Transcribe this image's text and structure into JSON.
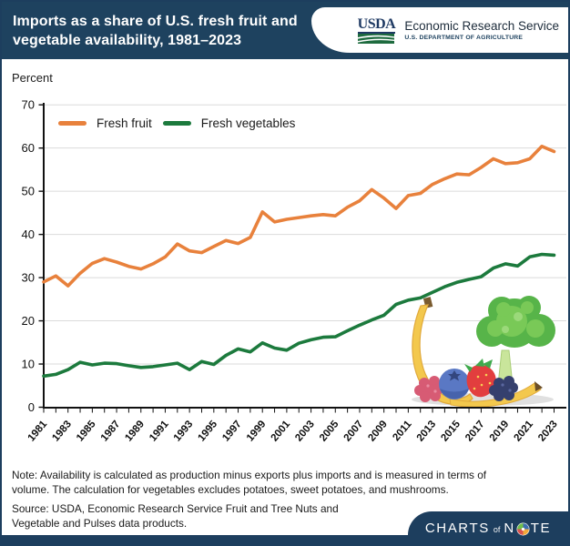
{
  "header": {
    "title_lines": [
      "Imports as a share of U.S. fresh fruit and",
      "vegetable availability, 1981–2023"
    ],
    "usda": {
      "wordmark": "USDA",
      "agency": "Economic Research Service",
      "dept": "U.S. DEPARTMENT OF AGRICULTURE"
    }
  },
  "chart": {
    "percent_label": "Percent"
  },
  "chart_data": {
    "type": "line",
    "title": "Imports as a share of U.S. fresh fruit and vegetable availability, 1981–2023",
    "xlabel": "",
    "ylabel": "Percent",
    "ylim": [
      0,
      70
    ],
    "yticks": [
      0,
      10,
      20,
      30,
      40,
      50,
      60,
      70
    ],
    "grid": "horizontal",
    "legend_position": "top-left-inside",
    "x": [
      1981,
      1982,
      1983,
      1984,
      1985,
      1986,
      1987,
      1988,
      1989,
      1990,
      1991,
      1992,
      1993,
      1994,
      1995,
      1996,
      1997,
      1998,
      1999,
      2000,
      2001,
      2002,
      2003,
      2004,
      2005,
      2006,
      2007,
      2008,
      2009,
      2010,
      2011,
      2012,
      2013,
      2014,
      2015,
      2016,
      2017,
      2018,
      2019,
      2020,
      2021,
      2022,
      2023
    ],
    "xtick_labels": [
      1981,
      1983,
      1985,
      1987,
      1989,
      1991,
      1993,
      1995,
      1997,
      1999,
      2001,
      2003,
      2005,
      2007,
      2009,
      2011,
      2013,
      2015,
      2017,
      2019,
      2021,
      2023
    ],
    "series": [
      {
        "name": "Fresh fruit",
        "color": "#E8813C",
        "values": [
          29.0,
          30.4,
          28.1,
          31.0,
          33.3,
          34.4,
          33.6,
          32.6,
          32.0,
          33.2,
          34.8,
          37.8,
          36.2,
          35.8,
          37.2,
          38.6,
          37.9,
          39.3,
          45.2,
          42.9,
          43.5,
          43.9,
          44.3,
          44.6,
          44.3,
          46.3,
          47.8,
          50.4,
          48.4,
          46.0,
          49.0,
          49.5,
          51.6,
          52.9,
          54.0,
          53.8,
          55.5,
          57.5,
          56.4,
          56.6,
          57.5,
          60.4,
          59.2
        ]
      },
      {
        "name": "Fresh vegetables",
        "color": "#1C7A3D",
        "values": [
          7.2,
          7.6,
          8.7,
          10.4,
          9.8,
          10.2,
          10.1,
          9.6,
          9.2,
          9.4,
          9.8,
          10.2,
          8.7,
          10.6,
          9.9,
          12.0,
          13.5,
          12.8,
          14.9,
          13.7,
          13.2,
          14.8,
          15.6,
          16.2,
          16.3,
          17.7,
          19.0,
          20.2,
          21.3,
          23.8,
          24.8,
          25.3,
          26.6,
          27.9,
          28.9,
          29.6,
          30.2,
          32.2,
          33.2,
          32.7,
          34.8,
          35.4,
          35.2
        ]
      }
    ]
  },
  "footer": {
    "note_lines": [
      "Note: Availability is calculated as production minus exports plus imports and is measured in terms of",
      "volume. The calculation for vegetables excludes potatoes, sweet potatoes, and mushrooms."
    ],
    "source_lines": [
      "Source: USDA, Economic Research Service Fruit and Tree Nuts and",
      "Vegetable and Pulses data products."
    ],
    "badge": {
      "charts": "CHARTS",
      "of": "of",
      "n": "N",
      "te": "TE"
    }
  },
  "colors": {
    "header_navy": "#1e425f",
    "badge_navy": "#1d3e5e",
    "fruit_orange": "#E8813C",
    "vegetable_green": "#1C7A3D",
    "gridline_gray": "#DBDBDB"
  }
}
